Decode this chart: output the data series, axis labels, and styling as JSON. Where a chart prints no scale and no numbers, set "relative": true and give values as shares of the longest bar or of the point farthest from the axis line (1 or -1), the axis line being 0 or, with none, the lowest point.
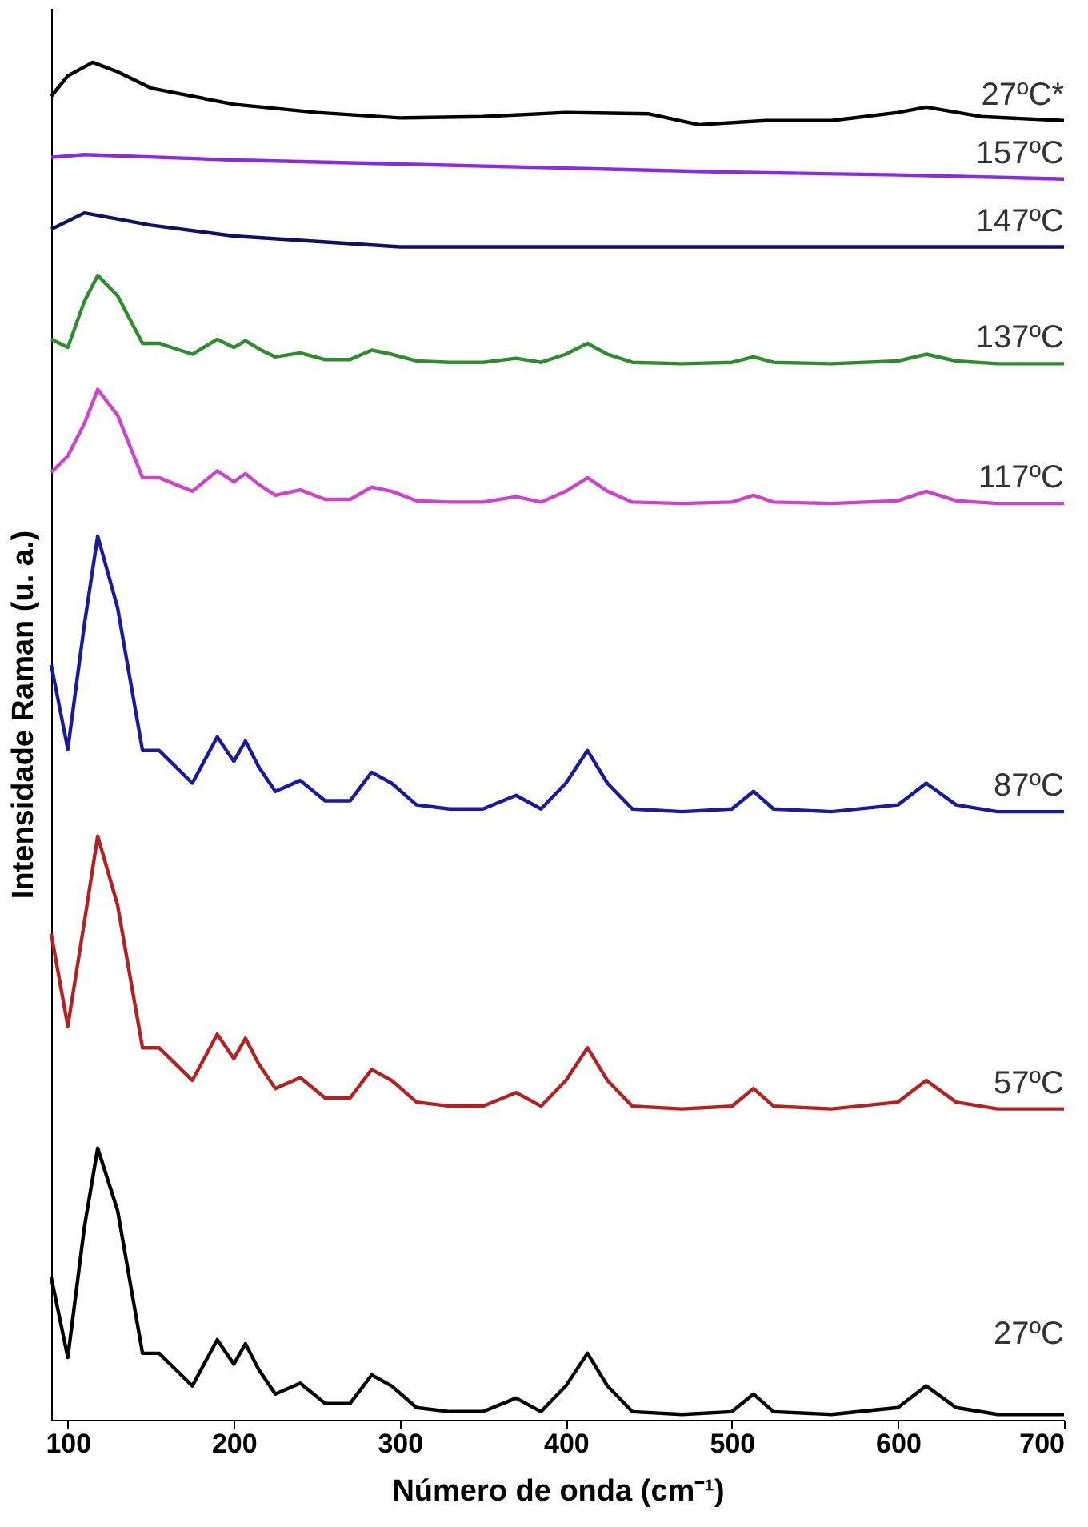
{
  "chart_data": {
    "type": "line",
    "relative": true,
    "xlabel": "Número de onda (cm⁻¹)",
    "ylabel": "Intensidade Raman (u. a.)",
    "xlim": [
      90,
      700
    ],
    "xticks": [
      100,
      200,
      300,
      400,
      500,
      600,
      700
    ],
    "grid": false,
    "marker": "none",
    "line_style": "solid",
    "x": [
      90,
      100,
      110,
      118,
      130,
      145,
      155,
      165,
      175,
      190,
      200,
      207,
      215,
      225,
      240,
      255,
      270,
      283,
      295,
      310,
      330,
      350,
      370,
      385,
      400,
      413,
      425,
      440,
      470,
      500,
      513,
      525,
      560,
      600,
      617,
      635,
      660,
      700
    ],
    "series": [
      {
        "name": "27ºC",
        "color": "#000000",
        "values": [
          0.105,
          0.046,
          0.142,
          0.2,
          0.154,
          0.049,
          0.049,
          0.037,
          0.025,
          0.059,
          0.041,
          0.056,
          0.037,
          0.019,
          0.027,
          0.012,
          0.012,
          0.033,
          0.025,
          0.009,
          0.006,
          0.006,
          0.016,
          0.006,
          0.025,
          0.049,
          0.025,
          0.006,
          0.004,
          0.006,
          0.019,
          0.006,
          0.004,
          0.009,
          0.025,
          0.009,
          0.004,
          0.004
        ]
      },
      {
        "name": "57ºC",
        "color": "#b22222",
        "values": [
          0.358,
          0.29,
          0.367,
          0.43,
          0.379,
          0.274,
          0.274,
          0.262,
          0.25,
          0.284,
          0.266,
          0.281,
          0.262,
          0.244,
          0.252,
          0.237,
          0.237,
          0.258,
          0.25,
          0.234,
          0.231,
          0.231,
          0.241,
          0.231,
          0.25,
          0.274,
          0.25,
          0.231,
          0.229,
          0.231,
          0.244,
          0.231,
          0.229,
          0.234,
          0.25,
          0.234,
          0.229,
          0.229
        ]
      },
      {
        "name": "87ºC",
        "color": "#1a1a9c",
        "values": [
          0.556,
          0.494,
          0.586,
          0.651,
          0.598,
          0.493,
          0.493,
          0.481,
          0.469,
          0.503,
          0.485,
          0.5,
          0.481,
          0.463,
          0.471,
          0.456,
          0.456,
          0.477,
          0.469,
          0.453,
          0.45,
          0.45,
          0.46,
          0.45,
          0.469,
          0.493,
          0.469,
          0.45,
          0.448,
          0.45,
          0.463,
          0.45,
          0.448,
          0.453,
          0.469,
          0.453,
          0.448,
          0.448
        ]
      },
      {
        "name": "117ºC",
        "color": "#cc44cc",
        "values": [
          0.698,
          0.71,
          0.734,
          0.759,
          0.74,
          0.694,
          0.694,
          0.689,
          0.684,
          0.699,
          0.691,
          0.697,
          0.689,
          0.681,
          0.685,
          0.678,
          0.678,
          0.687,
          0.684,
          0.677,
          0.676,
          0.676,
          0.68,
          0.676,
          0.684,
          0.694,
          0.684,
          0.676,
          0.675,
          0.676,
          0.681,
          0.676,
          0.675,
          0.677,
          0.684,
          0.677,
          0.675,
          0.675
        ]
      },
      {
        "name": "137ºC",
        "color": "#2e8b2e",
        "values": [
          0.796,
          0.79,
          0.824,
          0.843,
          0.828,
          0.793,
          0.793,
          0.789,
          0.785,
          0.796,
          0.79,
          0.795,
          0.789,
          0.783,
          0.786,
          0.781,
          0.781,
          0.788,
          0.785,
          0.78,
          0.779,
          0.779,
          0.782,
          0.779,
          0.785,
          0.793,
          0.785,
          0.779,
          0.778,
          0.779,
          0.783,
          0.779,
          0.778,
          0.78,
          0.785,
          0.78,
          0.778,
          0.778
        ]
      },
      {
        "name": "147ºC",
        "color": "#101060",
        "x": [
          90,
          110,
          150,
          200,
          300,
          400,
          500,
          600,
          700
        ],
        "values": [
          0.877,
          0.889,
          0.88,
          0.872,
          0.864,
          0.864,
          0.864,
          0.864,
          0.864
        ]
      },
      {
        "name": "157ºC",
        "color": "#8a2be2",
        "x": [
          90,
          110,
          200,
          300,
          400,
          500,
          600,
          700
        ],
        "values": [
          0.93,
          0.932,
          0.928,
          0.925,
          0.922,
          0.919,
          0.917,
          0.914
        ]
      },
      {
        "name": "27ºC*",
        "color": "#000000",
        "x": [
          90,
          100,
          115,
          130,
          150,
          200,
          250,
          300,
          350,
          400,
          450,
          480,
          520,
          560,
          600,
          617,
          650,
          700
        ],
        "values": [
          0.975,
          0.99,
          1.0,
          0.993,
          0.981,
          0.969,
          0.963,
          0.959,
          0.96,
          0.963,
          0.962,
          0.954,
          0.957,
          0.957,
          0.963,
          0.967,
          0.96,
          0.957
        ]
      }
    ]
  }
}
